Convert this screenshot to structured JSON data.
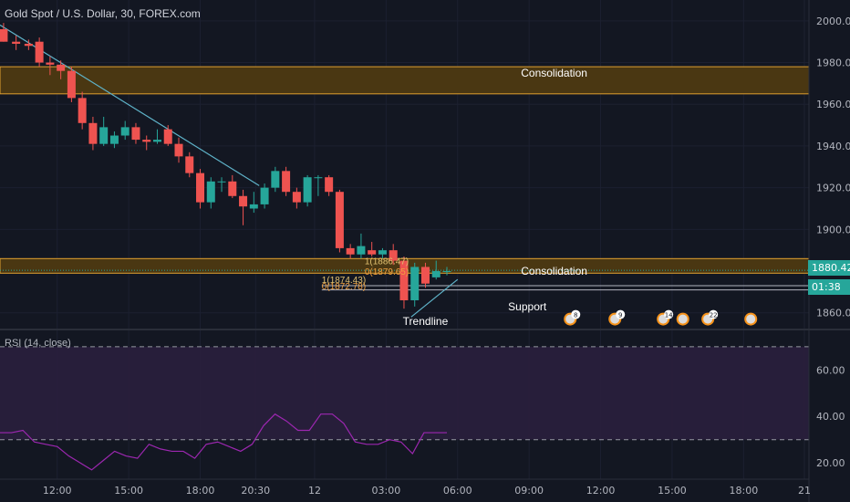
{
  "header": {
    "title": "Gold Spot / U.S. Dollar, 30, FOREX.com"
  },
  "price_tag": {
    "value": "1880.42",
    "countdown": "01:38"
  },
  "rsi_label": "RSI (14, close)",
  "colors": {
    "background": "#131722",
    "up": "#26a69a",
    "down": "#ef5350",
    "trend": "#5fb3c9",
    "zone_fill": "#4a3712",
    "zone_border": "#e0a030",
    "rsi": "#9c27b0",
    "rsi_band": "#2a1f3d"
  },
  "annotations": [
    {
      "text": "Consolidation",
      "x": 31,
      "y": 1975
    },
    {
      "text": "Consolidation",
      "x": 31,
      "y": 1880
    },
    {
      "text": "Support",
      "x": 29.5,
      "y": 1863
    },
    {
      "text": "Trendline",
      "x": 23.8,
      "y": 1856
    },
    {
      "text": "1(1886.47)",
      "x": 20.4,
      "y": 1885
    },
    {
      "text": "0(1879.65)",
      "x": 20.4,
      "y": 1880
    },
    {
      "text": "1(1874.43)",
      "x": 18.0,
      "y": 1876
    },
    {
      "text": "0(1872.78)",
      "x": 18.0,
      "y": 1873
    }
  ],
  "events": [
    {
      "x": 31.9,
      "label": "8"
    },
    {
      "x": 34.4,
      "label": "9"
    },
    {
      "x": 37.1,
      "label": "14"
    },
    {
      "x": 38.2,
      "label": ""
    },
    {
      "x": 39.6,
      "label": "22"
    },
    {
      "x": 42.0,
      "label": ""
    }
  ],
  "chart_data": {
    "type": "candlestick",
    "title": "Gold Spot / U.S. Dollar, 30, FOREX.com",
    "y_ticks": [
      2000,
      1980,
      1960,
      1940,
      1920,
      1900,
      1880,
      1860
    ],
    "ylim": [
      1852,
      2010
    ],
    "x_ticks": [
      {
        "x": 3.2,
        "label": "12:00"
      },
      {
        "x": 7.2,
        "label": "15:00"
      },
      {
        "x": 11.2,
        "label": "18:00"
      },
      {
        "x": 14.3,
        "label": "20:30"
      },
      {
        "x": 17.6,
        "label": "12"
      },
      {
        "x": 21.6,
        "label": "03:00"
      },
      {
        "x": 25.6,
        "label": "06:00"
      },
      {
        "x": 29.6,
        "label": "09:00"
      },
      {
        "x": 33.6,
        "label": "12:00"
      },
      {
        "x": 37.6,
        "label": "15:00"
      },
      {
        "x": 41.6,
        "label": "18:00"
      },
      {
        "x": 45.0,
        "label": "21"
      }
    ],
    "zones": [
      {
        "name": "Consolidation",
        "from": 1965,
        "to": 1978
      },
      {
        "name": "Consolidation",
        "from": 1879,
        "to": 1886
      }
    ],
    "support_lines": [
      1873,
      1871
    ],
    "last_price": 1880.42,
    "trendlines": [
      {
        "x1": 0,
        "y1": 1998,
        "x2": 14.5,
        "y2": 1921
      },
      {
        "x1": 23.0,
        "y1": 1858,
        "x2": 25.6,
        "y2": 1876
      }
    ],
    "candles": [
      {
        "x": 0.2,
        "o": 1996,
        "h": 1999,
        "l": 1990,
        "c": 1990
      },
      {
        "x": 0.9,
        "o": 1990,
        "h": 1993,
        "l": 1986,
        "c": 1989
      },
      {
        "x": 1.6,
        "o": 1989,
        "h": 1991,
        "l": 1986,
        "c": 1988
      },
      {
        "x": 2.2,
        "o": 1990,
        "h": 1992,
        "l": 1978,
        "c": 1980
      },
      {
        "x": 2.8,
        "o": 1980,
        "h": 1983,
        "l": 1974,
        "c": 1979
      },
      {
        "x": 3.4,
        "o": 1979,
        "h": 1981,
        "l": 1972,
        "c": 1976
      },
      {
        "x": 4.0,
        "o": 1976,
        "h": 1978,
        "l": 1961,
        "c": 1963
      },
      {
        "x": 4.6,
        "o": 1963,
        "h": 1966,
        "l": 1948,
        "c": 1951
      },
      {
        "x": 5.2,
        "o": 1951,
        "h": 1954,
        "l": 1938,
        "c": 1941
      },
      {
        "x": 5.8,
        "o": 1941,
        "h": 1954,
        "l": 1940,
        "c": 1949
      },
      {
        "x": 6.4,
        "o": 1941,
        "h": 1947,
        "l": 1939,
        "c": 1945
      },
      {
        "x": 7.0,
        "o": 1945,
        "h": 1952,
        "l": 1943,
        "c": 1949
      },
      {
        "x": 7.6,
        "o": 1949,
        "h": 1951,
        "l": 1941,
        "c": 1943
      },
      {
        "x": 8.2,
        "o": 1943,
        "h": 1945,
        "l": 1938,
        "c": 1942
      },
      {
        "x": 8.8,
        "o": 1942,
        "h": 1948,
        "l": 1941,
        "c": 1943
      },
      {
        "x": 9.4,
        "o": 1948,
        "h": 1950,
        "l": 1940,
        "c": 1941
      },
      {
        "x": 10.0,
        "o": 1941,
        "h": 1944,
        "l": 1932,
        "c": 1935
      },
      {
        "x": 10.6,
        "o": 1935,
        "h": 1937,
        "l": 1925,
        "c": 1927
      },
      {
        "x": 11.2,
        "o": 1927,
        "h": 1929,
        "l": 1910,
        "c": 1913
      },
      {
        "x": 11.8,
        "o": 1913,
        "h": 1925,
        "l": 1910,
        "c": 1923
      },
      {
        "x": 12.4,
        "o": 1923,
        "h": 1925,
        "l": 1918,
        "c": 1923
      },
      {
        "x": 13.0,
        "o": 1923,
        "h": 1926,
        "l": 1915,
        "c": 1916
      },
      {
        "x": 13.6,
        "o": 1916,
        "h": 1919,
        "l": 1902,
        "c": 1911
      },
      {
        "x": 14.2,
        "o": 1910,
        "h": 1918,
        "l": 1908,
        "c": 1912
      },
      {
        "x": 14.8,
        "o": 1912,
        "h": 1922,
        "l": 1910,
        "c": 1920
      },
      {
        "x": 15.4,
        "o": 1920,
        "h": 1930,
        "l": 1918,
        "c": 1928
      },
      {
        "x": 16.0,
        "o": 1928,
        "h": 1930,
        "l": 1916,
        "c": 1918
      },
      {
        "x": 16.6,
        "o": 1918,
        "h": 1920,
        "l": 1910,
        "c": 1913
      },
      {
        "x": 17.2,
        "o": 1913,
        "h": 1926,
        "l": 1911,
        "c": 1925
      },
      {
        "x": 17.8,
        "o": 1925,
        "h": 1926,
        "l": 1916,
        "c": 1925
      },
      {
        "x": 18.4,
        "o": 1925,
        "h": 1926,
        "l": 1916,
        "c": 1918
      },
      {
        "x": 19.0,
        "o": 1918,
        "h": 1919,
        "l": 1889,
        "c": 1891
      },
      {
        "x": 19.6,
        "o": 1891,
        "h": 1893,
        "l": 1886,
        "c": 1888
      },
      {
        "x": 20.2,
        "o": 1888,
        "h": 1898,
        "l": 1886,
        "c": 1892
      },
      {
        "x": 20.8,
        "o": 1890,
        "h": 1894,
        "l": 1887,
        "c": 1888
      },
      {
        "x": 21.4,
        "o": 1888,
        "h": 1891,
        "l": 1886,
        "c": 1890
      },
      {
        "x": 22.0,
        "o": 1890,
        "h": 1893,
        "l": 1883,
        "c": 1885
      },
      {
        "x": 22.6,
        "o": 1885,
        "h": 1887,
        "l": 1862,
        "c": 1866
      },
      {
        "x": 23.2,
        "o": 1866,
        "h": 1884,
        "l": 1863,
        "c": 1882
      },
      {
        "x": 23.8,
        "o": 1882,
        "h": 1884,
        "l": 1872,
        "c": 1874
      },
      {
        "x": 24.4,
        "o": 1877,
        "h": 1885,
        "l": 1876,
        "c": 1880
      },
      {
        "x": 25.0,
        "o": 1880,
        "h": 1882,
        "l": 1878,
        "c": 1880
      }
    ],
    "rsi": {
      "name": "RSI (14, close)",
      "y_ticks": [
        60,
        40,
        20
      ],
      "ylim": [
        13,
        77
      ],
      "bands": [
        70,
        30
      ],
      "values": [
        33,
        33,
        34,
        29,
        28,
        27,
        23,
        20,
        17,
        21,
        25,
        23,
        22,
        28,
        26,
        25,
        25,
        22,
        28,
        29,
        27,
        25,
        28,
        36,
        41,
        38,
        34,
        34,
        41,
        41,
        37,
        29,
        28,
        28,
        30,
        29,
        24,
        33,
        33,
        33
      ]
    }
  }
}
